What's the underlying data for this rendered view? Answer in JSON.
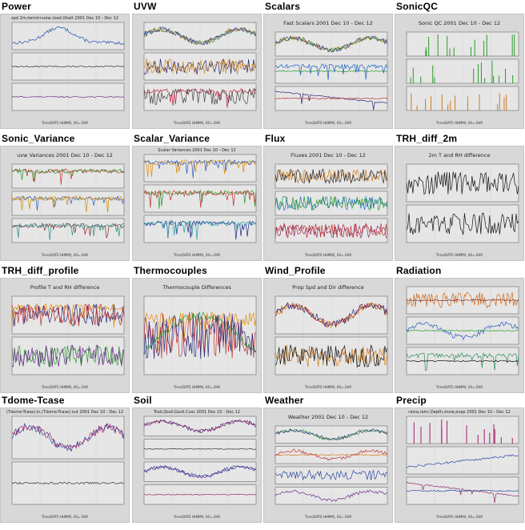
{
  "thumbnails": [
    {
      "title": "Power",
      "subtitle": "spd 2m,twind+solar,load,Vbatt 2001 Dec 10 - Dec 12",
      "footer": "Time(DATE HHMM), 00=-2HR",
      "panels": [
        [
          {
            "color": "#1f4fae",
            "shape": "peak"
          }
        ],
        [
          {
            "color": "#333333",
            "shape": "flat"
          }
        ],
        [
          {
            "color": "#6b3a8a",
            "shape": "flat"
          }
        ]
      ]
    },
    {
      "title": "UVW",
      "subtitle": "",
      "footer": "Time(DATE HHMM), 00=-2HR",
      "panels": [
        [
          {
            "color": "#2a8f2a",
            "shape": "wave"
          },
          {
            "color": "#d06a1a",
            "shape": "wave"
          },
          {
            "color": "#2a3fae",
            "shape": "wave"
          }
        ],
        [
          {
            "color": "#222266",
            "shape": "noisy"
          },
          {
            "color": "#d08a2a",
            "shape": "noisy"
          }
        ],
        [
          {
            "color": "#c02040",
            "shape": "spiky"
          },
          {
            "color": "#444444",
            "shape": "noisy"
          }
        ]
      ]
    },
    {
      "title": "Scalars",
      "subtitle": "Fast Scalars 2001 Dec 10 - Dec 12",
      "footer": "Time(DATE HHMM), 00=-2HR",
      "panels": [
        [
          {
            "color": "#d08a00",
            "shape": "wave"
          },
          {
            "color": "#6030a0",
            "shape": "wave"
          },
          {
            "color": "#208040",
            "shape": "wave"
          }
        ],
        [
          {
            "color": "#2a9a2a",
            "shape": "flat"
          },
          {
            "color": "#1a60c0",
            "shape": "spiky"
          }
        ],
        [
          {
            "color": "#2a2a7a",
            "shape": "rise"
          },
          {
            "color": "#c03030",
            "shape": "flat"
          }
        ]
      ]
    },
    {
      "title": "SonicQC",
      "subtitle": "Sonic QC 2001 Dec 10 - Dec 12",
      "footer": "Time(DATE HHMM), 00=-2HR",
      "panels": [
        [
          {
            "color": "#2a9a2a",
            "shape": "bars"
          }
        ],
        [
          {
            "color": "#2a9a2a",
            "shape": "bars"
          }
        ],
        [
          {
            "color": "#d07a1a",
            "shape": "bars"
          }
        ]
      ]
    },
    {
      "title": "Sonic_Variance",
      "subtitle": "uvw Variances 2001 Dec 10 - Dec 12",
      "footer": "Time(DATE HHMM), 00=-2HR",
      "panels": [
        [
          {
            "color": "#c03030",
            "shape": "spiky"
          },
          {
            "color": "#2a9a2a",
            "shape": "spiky"
          }
        ],
        [
          {
            "color": "#2a5ac0",
            "shape": "spiky"
          },
          {
            "color": "#d08a00",
            "shape": "spiky"
          }
        ],
        [
          {
            "color": "#8a2a2a",
            "shape": "spiky"
          },
          {
            "color": "#2a8a8a",
            "shape": "spiky"
          }
        ]
      ]
    },
    {
      "title": "Scalar_Variance",
      "subtitle": "Scalar Variances 2001 Dec 10 - Dec 12",
      "footer": "Time(DATE HHMM), 00=-2HR",
      "panels": [
        [
          {
            "color": "#e08a00",
            "shape": "spiky"
          },
          {
            "color": "#2a5ac0",
            "shape": "spiky"
          }
        ],
        [
          {
            "color": "#2a9a2a",
            "shape": "spiky"
          },
          {
            "color": "#c03030",
            "shape": "spiky"
          }
        ],
        [
          {
            "color": "#1a2a8a",
            "shape": "spiky"
          },
          {
            "color": "#2a9aaa",
            "shape": "spiky"
          }
        ]
      ]
    },
    {
      "title": "Flux",
      "subtitle": "Fluxes 2001 Dec 10 - Dec 12",
      "footer": "Time(DATE HHMM), 00=-2HR",
      "panels": [
        [
          {
            "color": "#d07a1a",
            "shape": "noisy"
          },
          {
            "color": "#2a2a2a",
            "shape": "noisy"
          }
        ],
        [
          {
            "color": "#1a6ac0",
            "shape": "noisy"
          },
          {
            "color": "#2a9a2a",
            "shape": "noisy"
          }
        ],
        [
          {
            "color": "#8a2a6a",
            "shape": "noisy"
          },
          {
            "color": "#c03030",
            "shape": "noisy"
          }
        ]
      ]
    },
    {
      "title": "TRH_diff_2m",
      "subtitle": "2m T and RH difference",
      "footer": "Time(DATE HHMM), 00=-2HR",
      "panels": [
        [
          {
            "color": "#111111",
            "shape": "noisy"
          }
        ],
        [
          {
            "color": "#111111",
            "shape": "noisy"
          }
        ]
      ]
    },
    {
      "title": "TRH_diff_profile",
      "subtitle": "Profile T and RH difference",
      "footer": "Time(DATE HHMM), 00=-2HR",
      "panels": [
        [
          {
            "color": "#e08a00",
            "shape": "spiky"
          },
          {
            "color": "#2a2a7a",
            "shape": "noisy"
          },
          {
            "color": "#c03030",
            "shape": "noisy"
          }
        ],
        [
          {
            "color": "#2a9a2a",
            "shape": "noisy"
          },
          {
            "color": "#6a2a8a",
            "shape": "noisy"
          }
        ]
      ]
    },
    {
      "title": "Thermocouples",
      "subtitle": "Thermocouple Differences",
      "footer": "Time(DATE HHMM), 00=-2HR",
      "panels": [
        [
          {
            "color": "#e08a00",
            "shape": "spiky"
          },
          {
            "color": "#c03030",
            "shape": "noisy"
          },
          {
            "color": "#2a9a2a",
            "shape": "dip"
          },
          {
            "color": "#2a2a7a",
            "shape": "noisy"
          }
        ]
      ]
    },
    {
      "title": "Wind_Profile",
      "subtitle": "Prop Spd and Dir difference",
      "footer": "Time(DATE HHMM), 00=-2HR",
      "panels": [
        [
          {
            "color": "#e08a00",
            "shape": "wave"
          },
          {
            "color": "#c03030",
            "shape": "wave"
          },
          {
            "color": "#2a2a7a",
            "shape": "wave"
          }
        ],
        [
          {
            "color": "#d07a1a",
            "shape": "noisy"
          },
          {
            "color": "#111111",
            "shape": "noisy"
          }
        ]
      ]
    },
    {
      "title": "Radiation",
      "subtitle": "",
      "footer": "Time(DATE HHMM), 00=-2HR",
      "panels": [
        [
          {
            "color": "#d06a1a",
            "shape": "noisy"
          },
          {
            "color": "#8a2a2a",
            "shape": "flat"
          }
        ],
        [
          {
            "color": "#2a5ac0",
            "shape": "wave"
          },
          {
            "color": "#2a9a2a",
            "shape": "flat"
          }
        ],
        [
          {
            "color": "#2a8a5a",
            "shape": "spiky"
          },
          {
            "color": "#111111",
            "shape": "flat"
          }
        ]
      ]
    },
    {
      "title": "Tdome-Tcase",
      "subtitle": "(Tdome-Tcase).in,(Tdome-Tcase).out 2001 Dec 10 - Dec 12",
      "footer": "Time(DATE HHMM), 00=-2HR",
      "panels": [
        [
          {
            "color": "#2a4aa0",
            "shape": "wave"
          },
          {
            "color": "#a02a6a",
            "shape": "wave"
          }
        ],
        [
          {
            "color": "#333333",
            "shape": "flat"
          }
        ]
      ]
    },
    {
      "title": "Soil",
      "subtitle": "Tsoil,Qsoil,Gsoil,Cvsc 2001 Dec 10 - Dec 12",
      "footer": "Time(DATE HHMM), 00=-2HR",
      "panels": [
        [
          {
            "color": "#2a2a7a",
            "shape": "wave"
          },
          {
            "color": "#a02a6a",
            "shape": "wave"
          }
        ],
        [
          {
            "color": "#333333",
            "shape": "flat"
          }
        ],
        [
          {
            "color": "#6a2a8a",
            "shape": "wave"
          },
          {
            "color": "#2a4aa0",
            "shape": "wave"
          }
        ],
        [
          {
            "color": "#a02a6a",
            "shape": "flat"
          }
        ]
      ]
    },
    {
      "title": "Weather",
      "subtitle": "Weather 2001 Dec 10 - Dec 12",
      "footer": "Time(DATE HHMM), 00=-2HR",
      "panels": [
        [
          {
            "color": "#2a9a2a",
            "shape": "wave"
          },
          {
            "color": "#2a2a7a",
            "shape": "wave"
          }
        ],
        [
          {
            "color": "#d07a1a",
            "shape": "flat"
          },
          {
            "color": "#c03030",
            "shape": "wave"
          }
        ],
        [
          {
            "color": "#2a4aa0",
            "shape": "noisy"
          }
        ],
        [
          {
            "color": "#6a2a8a",
            "shape": "wave"
          }
        ]
      ]
    },
    {
      "title": "Precip",
      "subtitle": "raina,rainr,Depth,snow,evap 2001 Dec 10 - Dec 12",
      "footer": "Time(DATE HHMM), 00=-2HR",
      "panels": [
        [
          {
            "color": "#a0206a",
            "shape": "bars"
          }
        ],
        [
          {
            "color": "#2a4aa0",
            "shape": "fall"
          }
        ],
        [
          {
            "color": "#8a2a6a",
            "shape": "rise"
          },
          {
            "color": "#2a4aa0",
            "shape": "flat"
          }
        ]
      ]
    }
  ]
}
